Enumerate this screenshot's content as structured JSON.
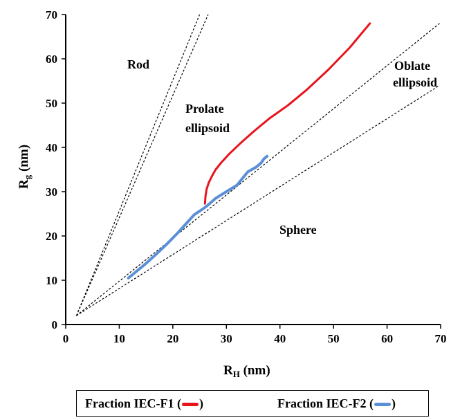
{
  "chart_data": {
    "type": "line",
    "xlabel": {
      "main": "R",
      "sub": "H",
      "unit": " (nm)"
    },
    "ylabel": {
      "main": "R",
      "sub": "g",
      "unit": " (nm)"
    },
    "xlim": [
      0,
      70
    ],
    "ylim": [
      0,
      70
    ],
    "xticks": [
      0,
      10,
      20,
      30,
      40,
      50,
      60,
      70
    ],
    "yticks": [
      0,
      10,
      20,
      30,
      40,
      50,
      60,
      70
    ],
    "grid": false,
    "reference_lines": [
      {
        "x": [
          2,
          25.0
        ],
        "y": [
          2,
          70
        ]
      },
      {
        "x": [
          2,
          26.6
        ],
        "y": [
          2,
          70
        ]
      },
      {
        "x": [
          2,
          69.8
        ],
        "y": [
          2,
          68
        ]
      },
      {
        "x": [
          2,
          69.8
        ],
        "y": [
          2,
          54
        ]
      }
    ],
    "region_labels": [
      "Rod",
      "Prolate",
      "ellipsoid",
      "Oblate",
      "ellipsoid",
      "Sphere"
    ],
    "series": [
      {
        "name": "Fraction IEC-F1",
        "color": "#e8141c",
        "x": [
          26.0,
          26.1,
          26.3,
          26.7,
          27.3,
          28.0,
          29.0,
          30.5,
          32.5,
          35.0,
          38.0,
          41.5,
          45.0,
          49.0,
          53.0,
          56.8
        ],
        "y": [
          27.3,
          29.0,
          30.5,
          32.0,
          33.5,
          35.0,
          36.5,
          38.5,
          40.8,
          43.5,
          46.5,
          49.5,
          53.0,
          57.5,
          62.5,
          68.0
        ]
      },
      {
        "name": "Fraction IEC-F2",
        "color": "#5b8fd6",
        "x": [
          11.7,
          13.0,
          15.0,
          17.0,
          19.0,
          21.0,
          22.5,
          24.0,
          25.5,
          26.5,
          28.0,
          30.0,
          32.0,
          33.0,
          34.0,
          35.5,
          36.5,
          37.0,
          37.6
        ],
        "y": [
          10.5,
          11.8,
          13.8,
          16.0,
          18.3,
          20.8,
          22.8,
          24.8,
          26.0,
          26.9,
          28.5,
          30.0,
          31.5,
          33.0,
          34.5,
          35.5,
          36.5,
          37.4,
          38.0
        ]
      }
    ]
  },
  "legend": {
    "item1": {
      "label": "Fraction IEC-F1",
      "open": "(",
      "close": ")"
    },
    "item2": {
      "label": "Fraction IEC-F2",
      "open": "(",
      "close": ")"
    }
  }
}
